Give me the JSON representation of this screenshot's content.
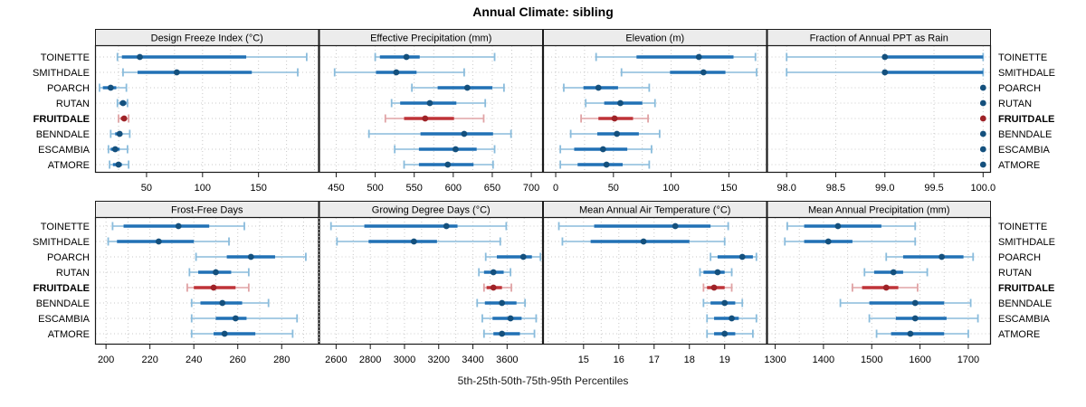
{
  "title": "Annual Climate: sibling",
  "caption": "5th-25th-50th-75th-95th Percentiles",
  "chart_data": {
    "type": "dotplot",
    "subtype": "lattice-percentile-dotplot",
    "title": "Annual Climate: sibling",
    "caption": "5th-25th-50th-75th-95th Percentiles",
    "percentiles_shown": [
      5,
      25,
      50,
      75,
      95
    ],
    "categories": [
      "TOINETTE",
      "SMITHDALE",
      "POARCH",
      "RUTAN",
      "FRUITDALE",
      "BENNDALE",
      "ESCAMBIA",
      "ATMORE"
    ],
    "highlighted_category": "FRUITDALE",
    "legend_position": "none",
    "grid": "dotted",
    "colors": {
      "blue": "#2171b5",
      "blue_dark": "#14507d",
      "blue_light": "#8abcdc",
      "red": "#bf3338",
      "red_dark": "#9e2227",
      "red_light": "#e0a3a5",
      "strip_fill": "#ececec",
      "grid": "#c9c9c9",
      "border": "#1a1a1a",
      "text": "#000000"
    },
    "panels": [
      {
        "title": "Design Freeze Index (°C)",
        "row": 0,
        "col": 0,
        "xlim": [
          4,
          204
        ],
        "ticks": [
          50,
          100,
          150
        ],
        "tick_labels": [
          "50",
          "100",
          "150"
        ],
        "grid_step": 25,
        "values": {
          "TOINETTE": [
            24,
            28,
            44,
            139,
            193
          ],
          "SMITHDALE": [
            29,
            42,
            77,
            144,
            185
          ],
          "POARCH": [
            8,
            11,
            18,
            23,
            32
          ],
          "RUTAN": [
            24,
            26,
            29,
            32,
            33
          ],
          "FRUITDALE": [
            25,
            27,
            30,
            32,
            34
          ],
          "BENNDALE": [
            18,
            22,
            26,
            28,
            35
          ],
          "ESCAMBIA": [
            16,
            18,
            22,
            26,
            33
          ],
          "ATMORE": [
            17,
            20,
            25,
            28,
            34
          ]
        }
      },
      {
        "title": "Effective Precipitation (mm)",
        "row": 0,
        "col": 1,
        "xlim": [
          428,
          715
        ],
        "ticks": [
          450,
          500,
          550,
          600,
          650,
          700
        ],
        "tick_labels": [
          "450",
          "500",
          "550",
          "600",
          "650",
          "700"
        ],
        "grid_step": 25,
        "values": {
          "TOINETTE": [
            500,
            506,
            540,
            557,
            653
          ],
          "SMITHDALE": [
            448,
            501,
            527,
            553,
            614
          ],
          "POARCH": [
            547,
            580,
            618,
            650,
            665
          ],
          "RUTAN": [
            521,
            532,
            570,
            604,
            641
          ],
          "FRUITDALE": [
            513,
            537,
            564,
            601,
            639
          ],
          "BENNDALE": [
            492,
            558,
            614,
            651,
            674
          ],
          "ESCAMBIA": [
            525,
            556,
            603,
            630,
            653
          ],
          "ATMORE": [
            537,
            556,
            593,
            626,
            651
          ]
        }
      },
      {
        "title": "Elevation (m)",
        "row": 0,
        "col": 2,
        "xlim": [
          -11,
          183
        ],
        "ticks": [
          0,
          50,
          100,
          150
        ],
        "tick_labels": [
          "0",
          "50",
          "100",
          "150"
        ],
        "grid_step": 25,
        "values": {
          "TOINETTE": [
            35,
            70,
            124,
            154,
            173
          ],
          "SMITHDALE": [
            57,
            99,
            128,
            147,
            174
          ],
          "POARCH": [
            7,
            24,
            37,
            54,
            81
          ],
          "RUTAN": [
            26,
            42,
            56,
            75,
            86
          ],
          "FRUITDALE": [
            22,
            37,
            51,
            67,
            80
          ],
          "BENNDALE": [
            13,
            36,
            53,
            72,
            90
          ],
          "ESCAMBIA": [
            4,
            16,
            41,
            62,
            83
          ],
          "ATMORE": [
            4,
            19,
            44,
            58,
            81
          ]
        }
      },
      {
        "title": "Fraction of Annual PPT as Rain",
        "row": 0,
        "col": 3,
        "xlim": [
          97.8,
          100.08
        ],
        "ticks": [
          98.0,
          98.5,
          99.0,
          99.5,
          100.0
        ],
        "tick_labels": [
          "98.0",
          "98.5",
          "99.0",
          "99.5",
          "100.0"
        ],
        "grid_step": 0.5,
        "values": {
          "TOINETTE": [
            98.0,
            99.0,
            99.0,
            100.0,
            100.0
          ],
          "SMITHDALE": [
            98.0,
            99.0,
            99.0,
            100.0,
            100.0
          ],
          "POARCH": [
            100.0,
            100.0,
            100.0,
            100.0,
            100.0
          ],
          "RUTAN": [
            100.0,
            100.0,
            100.0,
            100.0,
            100.0
          ],
          "FRUITDALE": [
            100.0,
            100.0,
            100.0,
            100.0,
            100.0
          ],
          "BENNDALE": [
            100.0,
            100.0,
            100.0,
            100.0,
            100.0
          ],
          "ESCAMBIA": [
            100.0,
            100.0,
            100.0,
            100.0,
            100.0
          ],
          "ATMORE": [
            100.0,
            100.0,
            100.0,
            100.0,
            100.0
          ]
        }
      },
      {
        "title": "Frost-Free Days",
        "row": 1,
        "col": 0,
        "xlim": [
          195,
          297
        ],
        "ticks": [
          200,
          220,
          240,
          260,
          280
        ],
        "tick_labels": [
          "200",
          "220",
          "240",
          "260",
          "280"
        ],
        "grid_step": 10,
        "values": {
          "TOINETTE": [
            203,
            208,
            233,
            247,
            263
          ],
          "SMITHDALE": [
            201,
            205,
            224,
            240,
            256
          ],
          "POARCH": [
            241,
            255,
            266,
            277,
            291
          ],
          "RUTAN": [
            238,
            242,
            250,
            257,
            265
          ],
          "FRUITDALE": [
            237,
            240,
            249,
            259,
            265
          ],
          "BENNDALE": [
            239,
            243,
            253,
            262,
            274
          ],
          "ESCAMBIA": [
            239,
            250,
            259,
            264,
            287
          ],
          "ATMORE": [
            239,
            249,
            254,
            268,
            285
          ]
        }
      },
      {
        "title": "Growing Degree Days (°C)",
        "row": 1,
        "col": 1,
        "xlim": [
          2500,
          3810
        ],
        "ticks": [
          2600,
          2800,
          3000,
          3200,
          3400,
          3600
        ],
        "tick_labels": [
          "2600",
          "2800",
          "3000",
          "3200",
          "3400",
          "3600"
        ],
        "grid_step": 100,
        "values": {
          "TOINETTE": [
            2570,
            2765,
            3245,
            3310,
            3595
          ],
          "SMITHDALE": [
            2605,
            2790,
            3055,
            3190,
            3560
          ],
          "POARCH": [
            3475,
            3540,
            3695,
            3745,
            3795
          ],
          "RUTAN": [
            3435,
            3465,
            3520,
            3580,
            3620
          ],
          "FRUITDALE": [
            3465,
            3480,
            3520,
            3570,
            3625
          ],
          "BENNDALE": [
            3425,
            3470,
            3570,
            3655,
            3705
          ],
          "ESCAMBIA": [
            3455,
            3515,
            3620,
            3685,
            3770
          ],
          "ATMORE": [
            3465,
            3520,
            3570,
            3675,
            3760
          ]
        }
      },
      {
        "title": "Mean Annual Air Temperature (°C)",
        "row": 1,
        "col": 2,
        "xlim": [
          13.85,
          20.2
        ],
        "ticks": [
          15,
          16,
          17,
          18,
          19
        ],
        "tick_labels": [
          "15",
          "16",
          "17",
          "18",
          "19"
        ],
        "grid_step": 0.5,
        "values": {
          "TOINETTE": [
            14.3,
            15.3,
            17.6,
            18.6,
            19.1
          ],
          "SMITHDALE": [
            14.4,
            15.2,
            16.7,
            18.0,
            19.0
          ],
          "POARCH": [
            18.6,
            18.8,
            19.5,
            19.8,
            19.9
          ],
          "RUTAN": [
            18.3,
            18.4,
            18.8,
            19.0,
            19.2
          ],
          "FRUITDALE": [
            18.4,
            18.5,
            18.7,
            19.0,
            19.2
          ],
          "BENNDALE": [
            18.4,
            18.6,
            19.0,
            19.3,
            19.5
          ],
          "ESCAMBIA": [
            18.5,
            18.7,
            19.2,
            19.4,
            19.9
          ],
          "ATMORE": [
            18.5,
            18.7,
            19.0,
            19.3,
            19.8
          ]
        }
      },
      {
        "title": "Mean Annual Precipitation (mm)",
        "row": 1,
        "col": 3,
        "xlim": [
          1283,
          1747
        ],
        "ticks": [
          1300,
          1400,
          1500,
          1600,
          1700
        ],
        "tick_labels": [
          "1300",
          "1400",
          "1500",
          "1600",
          "1700"
        ],
        "grid_step": 50,
        "values": {
          "TOINETTE": [
            1325,
            1360,
            1430,
            1520,
            1590
          ],
          "SMITHDALE": [
            1320,
            1360,
            1410,
            1460,
            1590
          ],
          "POARCH": [
            1530,
            1565,
            1645,
            1690,
            1710
          ],
          "RUTAN": [
            1485,
            1505,
            1545,
            1565,
            1615
          ],
          "FRUITDALE": [
            1460,
            1480,
            1530,
            1555,
            1595
          ],
          "BENNDALE": [
            1435,
            1495,
            1590,
            1650,
            1705
          ],
          "ESCAMBIA": [
            1495,
            1550,
            1590,
            1655,
            1720
          ],
          "ATMORE": [
            1510,
            1540,
            1580,
            1650,
            1700
          ]
        }
      }
    ]
  }
}
